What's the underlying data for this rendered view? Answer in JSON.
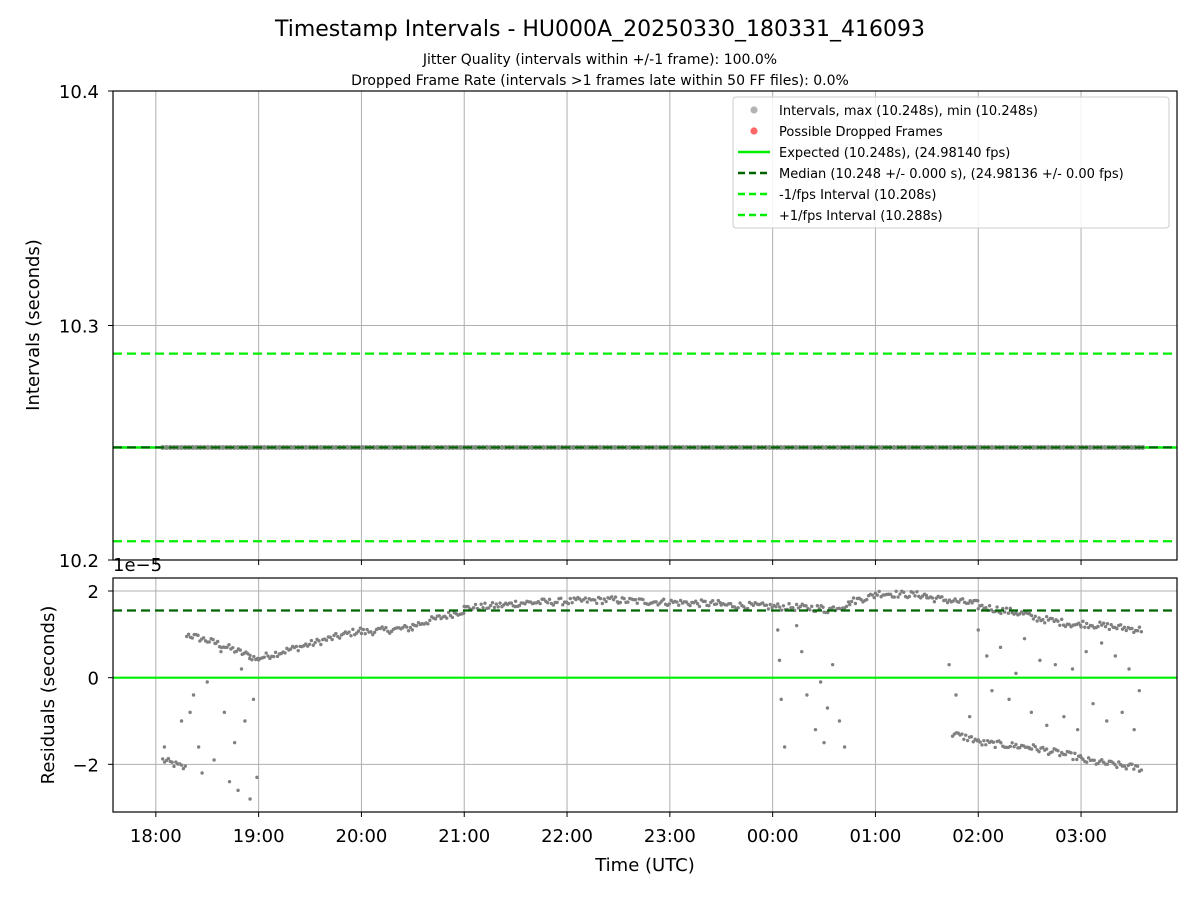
{
  "chart_data": [
    {
      "type": "scatter",
      "title": "Timestamp Intervals - HU000A_20250330_180331_416093",
      "subtitle_lines": [
        "Jitter Quality (intervals within +/-1 frame): 100.0%",
        "Dropped Frame Rate (intervals >1 frames late within 50 FF files): 0.0%"
      ],
      "ylabel": "Intervals (seconds)",
      "ylim": [
        10.2,
        10.4
      ],
      "yticks": [
        "10.2",
        "10.3",
        "10.4"
      ],
      "grid": true,
      "legend_position": "upper right",
      "series": [
        {
          "name": "Intervals, max (10.248s), min (10.248s)",
          "marker": "dot",
          "color": "#808080",
          "x_range": [
            "18:04",
            "03:36"
          ],
          "y": 10.248
        },
        {
          "name": "Possible Dropped Frames",
          "marker": "dot",
          "color": "#ff4040",
          "values": []
        }
      ],
      "reference_lines": [
        {
          "name": "Expected (10.248s), (24.98140 fps)",
          "y": 10.248,
          "style": "solid",
          "color": "#00ee00"
        },
        {
          "name": "Median (10.248 +/- 0.000 s), (24.98136 +/- 0.00 fps)",
          "y": 10.248,
          "style": "dashed",
          "color": "#006400"
        },
        {
          "name": "-1/fps Interval (10.208s)",
          "y": 10.208,
          "style": "dashed",
          "color": "#00ee00"
        },
        {
          "name": "+1/fps Interval (10.288s)",
          "y": 10.288,
          "style": "dashed",
          "color": "#00ee00"
        }
      ]
    },
    {
      "type": "scatter",
      "ylabel": "Residuals (seconds)",
      "xlabel": "Time (UTC)",
      "offset_text": "1e−5",
      "ylim": [
        -3.1,
        2.3
      ],
      "yticks": [
        "−2",
        "0",
        "2"
      ],
      "xticks": [
        "18:00",
        "19:00",
        "20:00",
        "21:00",
        "22:00",
        "23:00",
        "00:00",
        "01:00",
        "02:00",
        "03:00"
      ],
      "grid": true,
      "reference_lines": [
        {
          "name": "zero",
          "y": 0,
          "style": "solid",
          "color": "#00ee00"
        },
        {
          "name": "median",
          "y": 1.55,
          "style": "dashed",
          "color": "#006400"
        }
      ],
      "series": [
        {
          "name": "residuals",
          "color": "#808080",
          "bands": [
            {
              "from": "18:04",
              "to": "18:18",
              "y1": -1.9,
              "y2": -2.1
            },
            {
              "from": "18:18",
              "to": "18:35",
              "y1": 1.0,
              "y2": 0.8
            },
            {
              "from": "18:35",
              "to": "18:55",
              "y1": 0.8,
              "y2": 0.5
            },
            {
              "from": "18:55",
              "to": "19:00",
              "y1": 0.5,
              "y2": 0.4
            },
            {
              "from": "19:00",
              "to": "20:00",
              "y1": 0.45,
              "y2": 1.1
            },
            {
              "from": "20:00",
              "to": "20:30",
              "y1": 1.05,
              "y2": 1.15
            },
            {
              "from": "20:30",
              "to": "21:00",
              "y1": 1.2,
              "y2": 1.55
            },
            {
              "from": "21:00",
              "to": "21:30",
              "y1": 1.6,
              "y2": 1.7
            },
            {
              "from": "21:30",
              "to": "22:30",
              "y1": 1.72,
              "y2": 1.8
            },
            {
              "from": "22:30",
              "to": "23:30",
              "y1": 1.78,
              "y2": 1.7
            },
            {
              "from": "23:30",
              "to": "00:30",
              "y1": 1.68,
              "y2": 1.6
            },
            {
              "from": "00:30",
              "to": "00:45",
              "y1": 1.55,
              "y2": 1.7
            },
            {
              "from": "00:45",
              "to": "01:00",
              "y1": 1.75,
              "y2": 1.9
            },
            {
              "from": "01:00",
              "to": "01:30",
              "y1": 1.95,
              "y2": 1.9
            },
            {
              "from": "01:30",
              "to": "02:00",
              "y1": 1.85,
              "y2": 1.7
            },
            {
              "from": "02:00",
              "to": "02:30",
              "y1": 1.65,
              "y2": 1.45
            },
            {
              "from": "02:30",
              "to": "03:00",
              "y1": 1.4,
              "y2": 1.2
            },
            {
              "from": "03:00",
              "to": "03:36",
              "y1": 1.25,
              "y2": 1.1
            },
            {
              "from": "01:45",
              "to": "02:00",
              "y1": -1.3,
              "y2": -1.45
            },
            {
              "from": "02:00",
              "to": "02:30",
              "y1": -1.5,
              "y2": -1.6
            },
            {
              "from": "02:30",
              "to": "03:00",
              "y1": -1.6,
              "y2": -1.85
            },
            {
              "from": "03:00",
              "to": "03:36",
              "y1": -1.9,
              "y2": -2.1
            }
          ],
          "scatter_points": [
            [
              "18:05",
              -1.6
            ],
            [
              "18:15",
              -1.0
            ],
            [
              "18:20",
              -0.8
            ],
            [
              "18:22",
              -0.4
            ],
            [
              "18:25",
              -1.6
            ],
            [
              "18:27",
              -2.2
            ],
            [
              "18:30",
              -0.1
            ],
            [
              "18:34",
              -1.9
            ],
            [
              "18:38",
              0.6
            ],
            [
              "18:40",
              -0.8
            ],
            [
              "18:43",
              -2.4
            ],
            [
              "18:46",
              -1.5
            ],
            [
              "18:48",
              -2.6
            ],
            [
              "18:50",
              0.2
            ],
            [
              "18:52",
              -1.0
            ],
            [
              "18:55",
              -2.8
            ],
            [
              "18:57",
              -0.5
            ],
            [
              "18:59",
              -2.3
            ],
            [
              "00:03",
              1.1
            ],
            [
              "00:04",
              0.4
            ],
            [
              "00:05",
              -0.5
            ],
            [
              "00:07",
              -1.6
            ],
            [
              "00:14",
              1.2
            ],
            [
              "00:17",
              0.6
            ],
            [
              "00:20",
              -0.4
            ],
            [
              "00:25",
              -1.2
            ],
            [
              "00:28",
              -0.1
            ],
            [
              "00:30",
              -1.5
            ],
            [
              "00:32",
              -0.7
            ],
            [
              "00:35",
              0.3
            ],
            [
              "00:39",
              -1.0
            ],
            [
              "00:42",
              -1.6
            ],
            [
              "01:43",
              0.3
            ],
            [
              "01:47",
              -0.4
            ],
            [
              "01:55",
              -0.9
            ],
            [
              "02:00",
              1.1
            ],
            [
              "02:05",
              0.5
            ],
            [
              "02:08",
              -0.3
            ],
            [
              "02:13",
              0.7
            ],
            [
              "02:18",
              -0.5
            ],
            [
              "02:22",
              0.1
            ],
            [
              "02:27",
              0.9
            ],
            [
              "02:31",
              -0.8
            ],
            [
              "02:36",
              0.4
            ],
            [
              "02:40",
              -1.1
            ],
            [
              "02:45",
              0.3
            ],
            [
              "02:50",
              -0.9
            ],
            [
              "02:55",
              0.2
            ],
            [
              "02:58",
              -1.2
            ],
            [
              "03:03",
              0.6
            ],
            [
              "03:07",
              -0.6
            ],
            [
              "03:12",
              0.8
            ],
            [
              "03:15",
              -1.0
            ],
            [
              "03:20",
              0.5
            ],
            [
              "03:24",
              -0.8
            ],
            [
              "03:28",
              0.2
            ],
            [
              "03:31",
              -1.2
            ],
            [
              "03:34",
              -0.3
            ]
          ]
        }
      ]
    }
  ]
}
